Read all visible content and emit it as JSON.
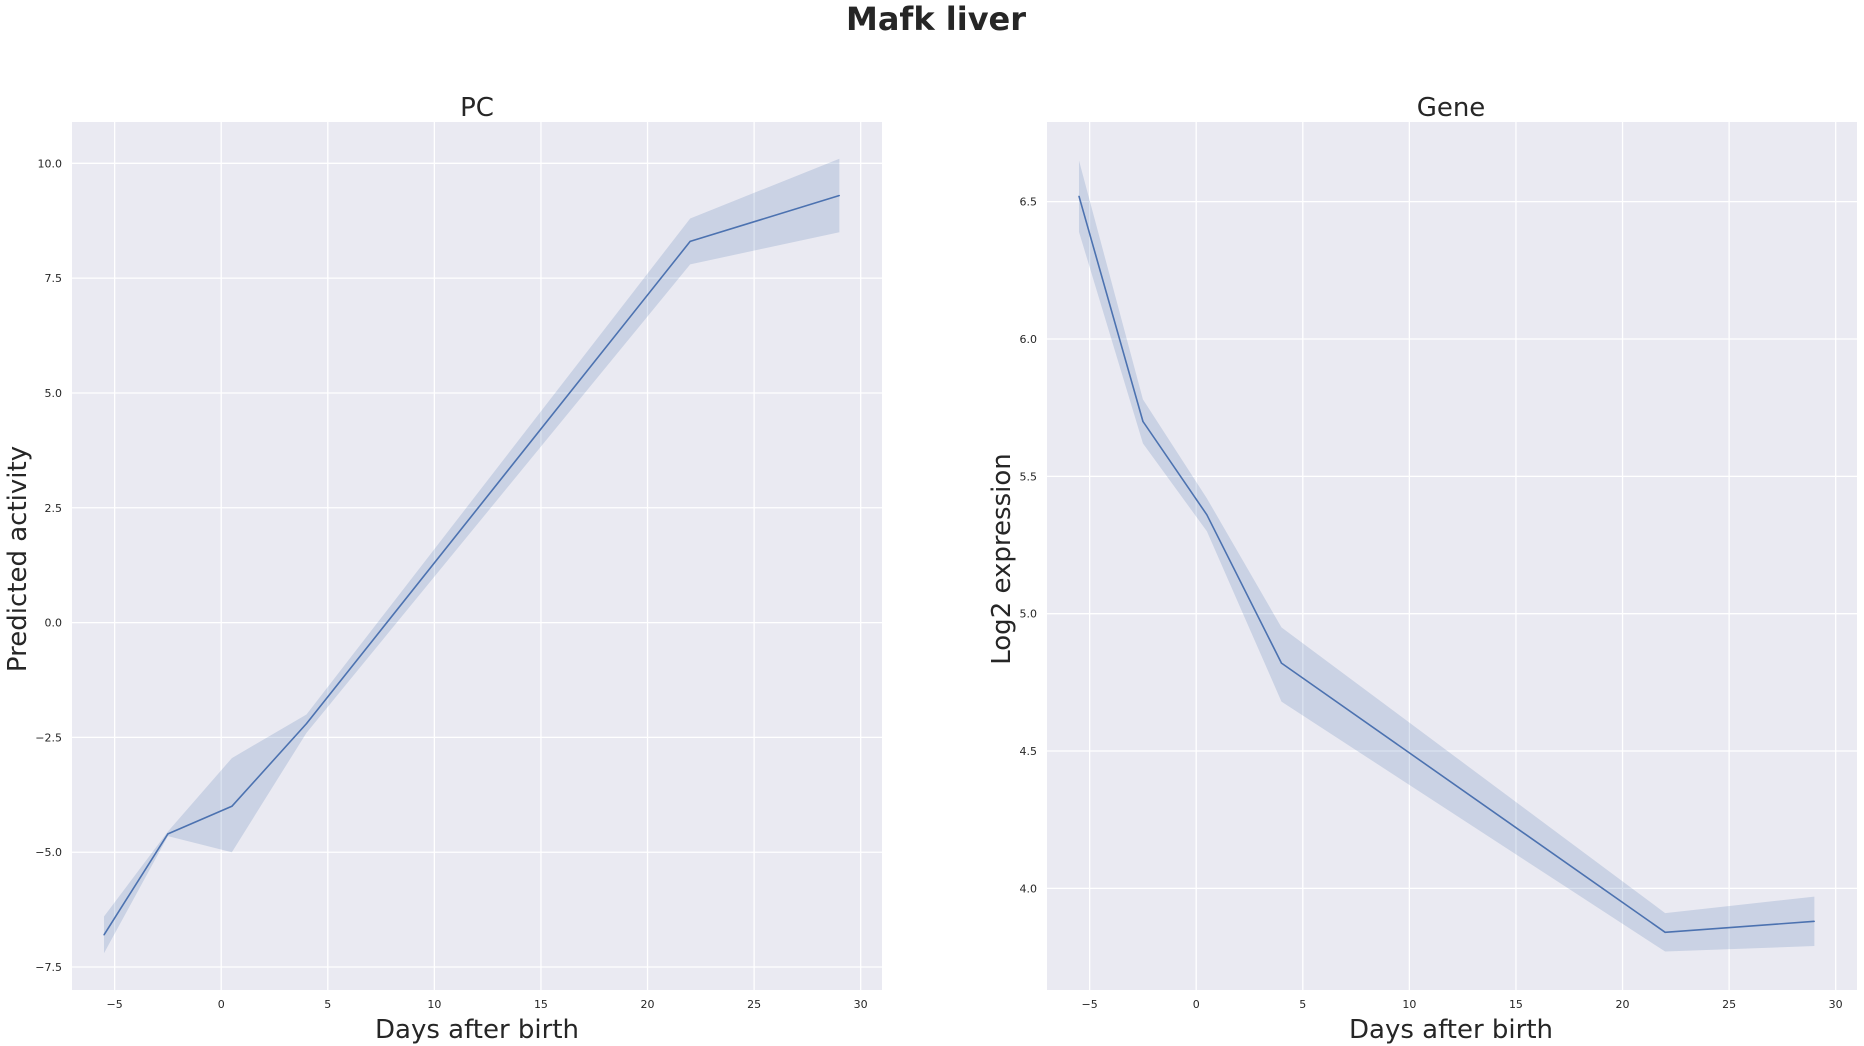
{
  "figure": {
    "suptitle": "Mafk liver"
  },
  "chart_data": [
    {
      "type": "line",
      "title": "PC",
      "xlabel": "Days after birth",
      "ylabel": "Predicted activity",
      "xlim": [
        -7,
        31
      ],
      "ylim": [
        -8.0,
        10.9
      ],
      "xticks": [
        -5,
        0,
        5,
        10,
        15,
        20,
        25,
        30
      ],
      "xtick_labels": [
        "−5",
        "0",
        "5",
        "10",
        "15",
        "20",
        "25",
        "30"
      ],
      "yticks": [
        -7.5,
        -5.0,
        -2.5,
        0.0,
        2.5,
        5.0,
        7.5,
        10.0
      ],
      "ytick_labels": [
        "−7.5",
        "−5.0",
        "−2.5",
        "0.0",
        "2.5",
        "5.0",
        "7.5",
        "10.0"
      ],
      "grid": true,
      "color": "#4c72b0",
      "x": [
        -5.5,
        -2.5,
        0.5,
        4,
        22,
        29
      ],
      "y": [
        -6.8,
        -4.6,
        -4.0,
        -2.2,
        8.3,
        9.3
      ],
      "ci_lower": [
        -7.2,
        -4.65,
        -5.0,
        -2.4,
        7.8,
        8.5
      ],
      "ci_upper": [
        -6.4,
        -4.55,
        -2.95,
        -2.0,
        8.8,
        10.1
      ]
    },
    {
      "type": "line",
      "title": "Gene",
      "xlabel": "Days after birth",
      "ylabel": "Log2 expression",
      "xlim": [
        -7,
        31
      ],
      "ylim": [
        3.63,
        6.79
      ],
      "xticks": [
        -5,
        0,
        5,
        10,
        15,
        20,
        25,
        30
      ],
      "xtick_labels": [
        "−5",
        "0",
        "5",
        "10",
        "15",
        "20",
        "25",
        "30"
      ],
      "yticks": [
        4.0,
        4.5,
        5.0,
        5.5,
        6.0,
        6.5
      ],
      "ytick_labels": [
        "4.0",
        "4.5",
        "5.0",
        "5.5",
        "6.0",
        "6.5"
      ],
      "grid": true,
      "color": "#4c72b0",
      "x": [
        -5.5,
        -2.5,
        0.5,
        4,
        22,
        29
      ],
      "y": [
        6.52,
        5.7,
        5.36,
        4.82,
        3.84,
        3.88
      ],
      "ci_lower": [
        6.39,
        5.62,
        5.3,
        4.68,
        3.77,
        3.79
      ],
      "ci_upper": [
        6.65,
        5.78,
        5.42,
        4.95,
        3.91,
        3.97
      ]
    }
  ]
}
